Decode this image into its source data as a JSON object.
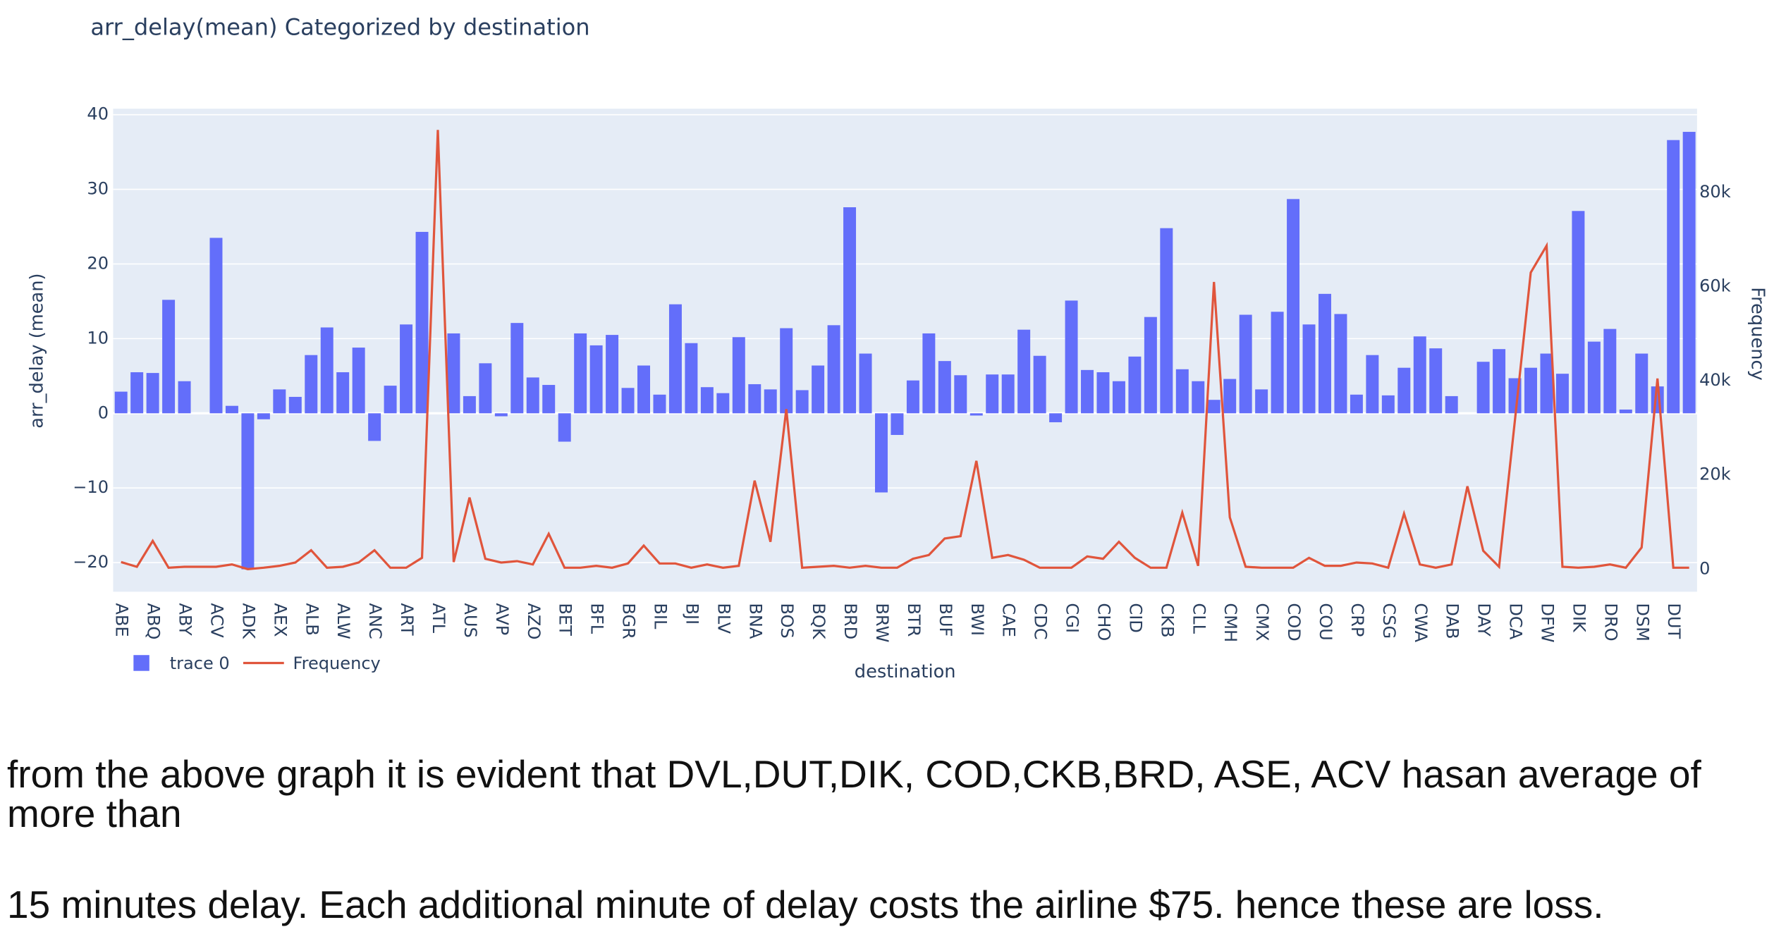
{
  "chart_data": {
    "type": "bar-line",
    "title": "arr_delay(mean) Categorized by destination",
    "x_label": "destination",
    "y_label": "arr_delay (mean)",
    "y2_label": "Frequency",
    "categories": [
      "ABE",
      null,
      "ABQ",
      null,
      "ABY",
      null,
      "ACV",
      null,
      "ADK",
      null,
      "AEX",
      null,
      "ALB",
      null,
      "ALW",
      null,
      "ANC",
      null,
      "ART",
      null,
      "ATL",
      null,
      "AUS",
      null,
      "AVP",
      null,
      "AZO",
      null,
      "BET",
      null,
      "BFL",
      null,
      "BGR",
      null,
      "BIL",
      null,
      "BJI",
      null,
      "BLV",
      null,
      "BNA",
      null,
      "BOS",
      null,
      "BQK",
      null,
      "BRD",
      null,
      "BRW",
      null,
      "BTR",
      null,
      "BUF",
      null,
      "BWI",
      null,
      "CAE",
      null,
      "CDC",
      null,
      "CGI",
      null,
      "CHO",
      null,
      "CID",
      null,
      "CKB",
      null,
      "CLL",
      null,
      "CMH",
      null,
      "CMX",
      null,
      "COD",
      null,
      "COU",
      null,
      "CRP",
      null,
      "CSG",
      null,
      "CWA",
      null,
      "DAB",
      null,
      "DAY",
      null,
      "DCA",
      null,
      "DFW",
      null,
      "DIK",
      null,
      "DRO",
      null,
      "DSM",
      null,
      "DUT",
      null
    ],
    "series": [
      {
        "name": "trace 0",
        "type": "bar",
        "color": "#636efa",
        "values": [
          2.9,
          5.5,
          5.4,
          15.2,
          4.3,
          0,
          23.5,
          1.0,
          -20.9,
          -0.8,
          3.2,
          2.2,
          7.8,
          11.5,
          5.5,
          8.8,
          -3.7,
          3.7,
          11.9,
          24.3,
          0,
          10.7,
          2.3,
          6.7,
          -0.4,
          12.1,
          4.8,
          3.8,
          -3.8,
          10.7,
          9.1,
          10.5,
          3.4,
          6.4,
          2.5,
          14.6,
          9.4,
          3.5,
          2.7,
          10.2,
          3.9,
          3.2,
          11.4,
          3.1,
          6.4,
          11.8,
          27.6,
          8.0,
          -10.6,
          -2.9,
          4.4,
          10.7,
          7.0,
          5.1,
          -0.3,
          5.2,
          5.2,
          11.2,
          7.7,
          -1.2,
          15.1,
          5.8,
          5.5,
          4.3,
          7.6,
          12.9,
          24.8,
          5.9,
          4.3,
          1.8,
          4.6,
          13.2,
          3.2,
          13.6,
          28.7,
          11.9,
          16.0,
          13.3,
          2.5,
          7.8,
          2.4,
          6.1,
          10.3,
          8.7,
          2.3,
          0,
          6.9,
          8.6,
          4.7,
          6.1,
          8.0,
          5.3,
          27.1,
          9.6,
          11.3,
          0.5,
          8.0,
          3.6,
          36.6,
          37.7
        ]
      },
      {
        "name": "Frequency",
        "type": "line",
        "axis": "y2",
        "color": "#e0553c",
        "values": [
          1500,
          500,
          6000,
          300,
          500,
          500,
          500,
          1000,
          0,
          300,
          700,
          1400,
          4000,
          300,
          500,
          1400,
          4000,
          300,
          300,
          2400,
          93300,
          1500,
          15200,
          2200,
          1400,
          1700,
          1000,
          7500,
          300,
          300,
          700,
          300,
          1200,
          5000,
          1200,
          1200,
          300,
          1000,
          300,
          700,
          18800,
          5800,
          34000,
          300,
          500,
          700,
          300,
          700,
          300,
          300,
          2200,
          3000,
          6500,
          7000,
          23000,
          2400,
          3000,
          2000,
          300,
          300,
          300,
          2700,
          2200,
          5800,
          2400,
          300,
          300,
          12000,
          700,
          61000,
          11000,
          500,
          300,
          300,
          300,
          2400,
          700,
          700,
          1400,
          1200,
          300,
          11800,
          1000,
          300,
          1000,
          17600,
          3900,
          500,
          31600,
          63000,
          68700,
          500,
          300,
          500,
          1000,
          300,
          4600,
          40500,
          300,
          300
        ]
      }
    ],
    "ylim": [
      -23.9,
      40.8
    ],
    "yticks": [
      {
        "value": -20,
        "label": "−20"
      },
      {
        "value": -10,
        "label": "−10"
      },
      0,
      10,
      20,
      30,
      40
    ],
    "y2lim": [
      -4800,
      97800
    ],
    "y2ticks": [
      0,
      {
        "value": 20000,
        "label": "20k"
      },
      {
        "value": 40000,
        "label": "40k"
      },
      {
        "value": 60000,
        "label": "60k"
      },
      {
        "value": 80000,
        "label": "80k"
      }
    ],
    "grid": true,
    "legend": "bottom-left"
  },
  "text": [
    "from the above graph it is evident that DVL,DUT,DIK, COD,CKB,BRD, ASE, ACV hasan average of more than",
    "15 minutes delay. Each additional minute of delay costs the airline $75. hence these are loss."
  ]
}
